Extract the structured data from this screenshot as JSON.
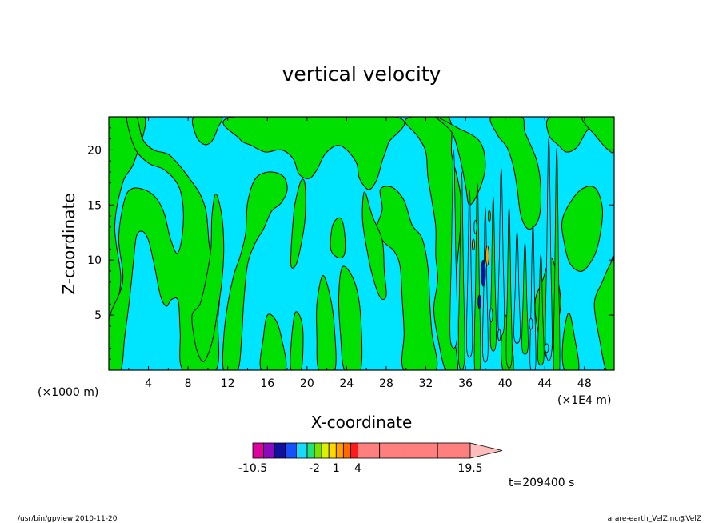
{
  "chart_data": {
    "type": "heatmap",
    "title": "vertical velocity",
    "xlabel": "X-coordinate",
    "ylabel": "Z-coordinate",
    "x_unit_left": "(×1000 m)",
    "x_unit_right": "(×1E4 m)",
    "xlim": [
      0,
      51
    ],
    "ylim": [
      0,
      23
    ],
    "x_ticks": [
      "4",
      "8",
      "12",
      "16",
      "20",
      "24",
      "28",
      "32",
      "36",
      "40",
      "44",
      "48"
    ],
    "x_tick_values": [
      4,
      8,
      12,
      16,
      20,
      24,
      28,
      32,
      36,
      40,
      44,
      48
    ],
    "y_ticks": [
      "5",
      "10",
      "15",
      "20"
    ],
    "y_tick_values": [
      5,
      10,
      15,
      20
    ],
    "grid": false,
    "contour_levels": [
      -10.5,
      -9,
      -7.5,
      -6,
      -4.5,
      -3,
      -2,
      -1,
      0,
      1,
      2,
      3,
      4,
      7,
      10.5,
      15,
      19.5
    ],
    "colorbar": {
      "tick_labels": [
        "-10.5",
        "-2",
        "1",
        "4",
        "19.5"
      ],
      "tick_values": [
        -10.5,
        -2,
        1,
        4,
        19.5
      ],
      "colors": [
        "#e0009e",
        "#8a0ac0",
        "#1010a0",
        "#1850ff",
        "#19d9ff",
        "#22e07a",
        "#7ae000",
        "#dcf000",
        "#ffd800",
        "#ffa000",
        "#ff6a00",
        "#ff1a1a",
        "#ff7f7f",
        "#ffbcbc"
      ]
    },
    "field_colors": {
      "negative": "#00e5ff",
      "positive": "#00e000",
      "strong_negative": "#1010a0",
      "strong_positive": "#ffa000"
    },
    "time_label": "t=209400 s"
  },
  "footer": {
    "left": "/usr/bin/gpview   2010-11-20",
    "right": "arare-earth_VelZ.nc@VelZ"
  }
}
